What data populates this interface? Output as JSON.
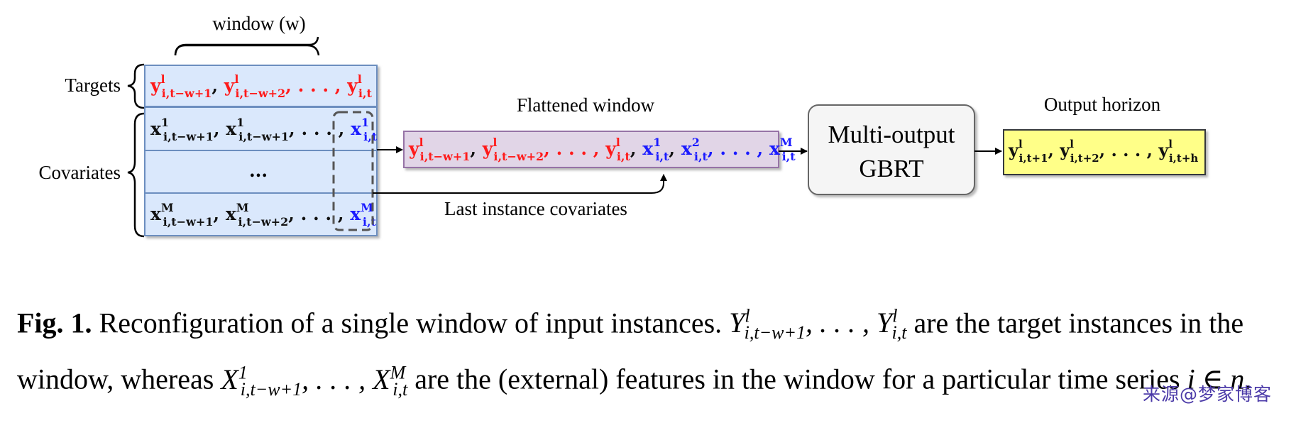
{
  "window_label": "window (w)",
  "targets_label": "Targets",
  "covariates_label": "Covariates",
  "flattened_label": "Flattened window",
  "last_instance_label": "Last instance covariates",
  "model_label_line1": "Multi-output",
  "model_label_line2": "GBRT",
  "output_label": "Output horizon",
  "dots_row": "...",
  "caption": {
    "fig": "Fig. 1.",
    "text1": "Reconfiguration of a single window of input instances.",
    "text2": "are the target instances in the window, whereas",
    "text3": "are the (external) features in the window for a particular time series",
    "text4": "."
  },
  "watermark": "来源@梦家博客",
  "colors": {
    "target_red": "#ff1a1a",
    "covariate_blue": "#1a1aff",
    "input_box_fill": "#dae8fc",
    "input_box_stroke": "#6c8ebf",
    "flattened_fill": "#e1d5e7",
    "flattened_stroke": "#9673a6",
    "model_fill": "#f5f5f5",
    "output_fill": "#ffff88"
  }
}
